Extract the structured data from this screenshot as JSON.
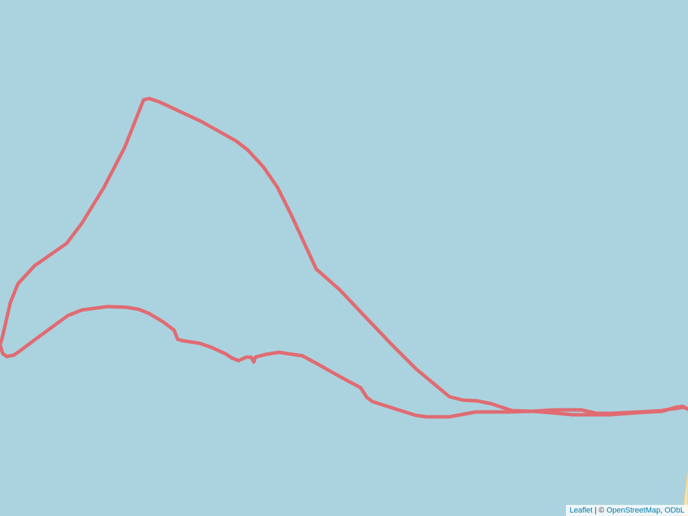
{
  "map": {
    "colors": {
      "water": "#aad3df",
      "track": "#e06b71",
      "shore": "#f2e4b2",
      "shore_edge": "#e9c98b"
    }
  },
  "attribution": {
    "leaflet_label": "Leaflet",
    "separator": " | © ",
    "osm_label": "OpenStreetMap",
    "comma": ", ",
    "odbl_label": "ODbL"
  }
}
